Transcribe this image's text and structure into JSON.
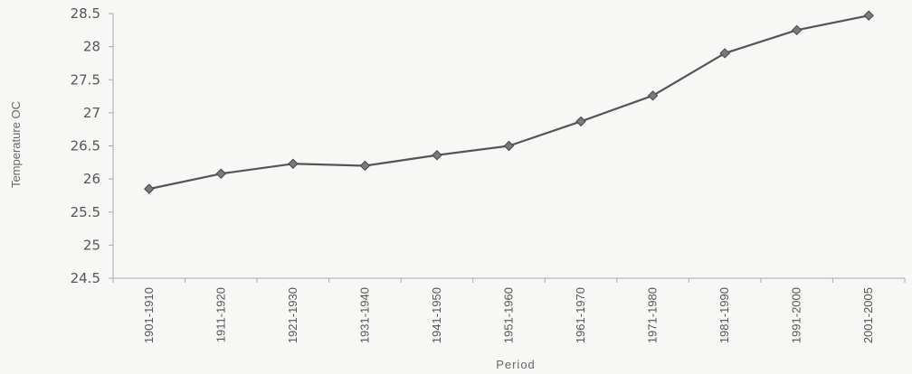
{
  "chart_data": {
    "type": "line",
    "title": "",
    "xlabel": "Period",
    "ylabel": "Temperature OC",
    "ylim": [
      24.5,
      28.5
    ],
    "yticks": [
      "24.5",
      "25",
      "25.5",
      "26",
      "26.5",
      "27",
      "27.5",
      "28",
      "28.5"
    ],
    "categories": [
      "1901-1910",
      "1911-1920",
      "1921-1930",
      "1931-1940",
      "1941-1950",
      "1951-1960",
      "1961-1970",
      "1971-1980",
      "1981-1990",
      "1991-2000",
      "2001-2005"
    ],
    "series": [
      {
        "values": [
          25.85,
          26.08,
          26.23,
          26.2,
          26.36,
          26.5,
          26.87,
          27.26,
          27.9,
          28.25,
          28.47
        ],
        "color": "#555555",
        "marker": "diamond"
      }
    ],
    "grid": false,
    "legend": "none"
  }
}
